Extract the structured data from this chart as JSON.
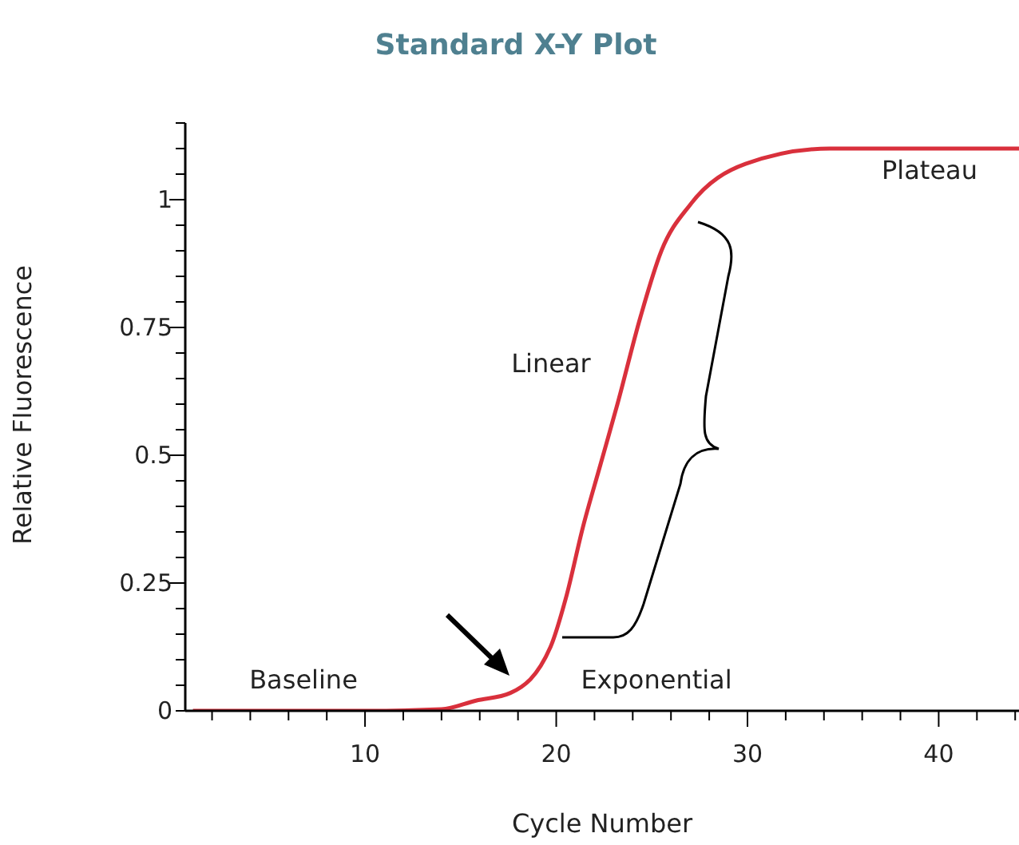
{
  "chart_data": {
    "type": "line",
    "title": "Standard X-Y Plot",
    "xlabel": "Cycle Number",
    "ylabel": "Relative Fluorescence",
    "x": [
      1,
      6,
      10,
      14,
      15.8,
      17.6,
      19.7,
      20.5,
      21.4,
      22.3,
      23.2,
      24.4,
      25.5,
      27.0,
      29.9,
      34.3,
      40,
      44.2
    ],
    "series": [
      {
        "color": "#d9303c",
        "values": [
          0,
          0,
          0,
          0.003,
          0.02,
          0.035,
          0.125,
          0.22,
          0.36,
          0.48,
          0.6,
          0.77,
          0.9,
          0.99,
          1.07,
          1.1,
          1.1,
          1.1
        ]
      }
    ],
    "xlim": [
      0.6,
      44.2
    ],
    "ylim": [
      0,
      1.15
    ],
    "xticks": [
      {
        "value": 2,
        "label": null
      },
      {
        "value": 4,
        "label": null
      },
      {
        "value": 6,
        "label": null
      },
      {
        "value": 8,
        "label": null
      },
      10,
      {
        "value": 12,
        "label": null
      },
      {
        "value": 14,
        "label": null
      },
      {
        "value": 16,
        "label": null
      },
      {
        "value": 18,
        "label": null
      },
      20,
      {
        "value": 22,
        "label": null
      },
      {
        "value": 24,
        "label": null
      },
      {
        "value": 26,
        "label": null
      },
      {
        "value": 28,
        "label": null
      },
      30,
      {
        "value": 32,
        "label": null
      },
      {
        "value": 34,
        "label": null
      },
      {
        "value": 36,
        "label": null
      },
      {
        "value": 38,
        "label": null
      },
      40,
      {
        "value": 42,
        "label": null
      },
      {
        "value": 44,
        "label": null
      }
    ],
    "yticks": [
      0,
      {
        "value": 0.05,
        "label": null
      },
      {
        "value": 0.1,
        "label": null
      },
      {
        "value": 0.15,
        "label": null
      },
      {
        "value": 0.2,
        "label": null
      },
      0.25,
      {
        "value": 0.3,
        "label": null
      },
      {
        "value": 0.35,
        "label": null
      },
      {
        "value": 0.4,
        "label": null
      },
      {
        "value": 0.45,
        "label": null
      },
      0.5,
      {
        "value": 0.55,
        "label": null
      },
      {
        "value": 0.6,
        "label": null
      },
      {
        "value": 0.65,
        "label": null
      },
      {
        "value": 0.7,
        "label": null
      },
      0.75,
      {
        "value": 0.8,
        "label": null
      },
      {
        "value": 0.85,
        "label": null
      },
      {
        "value": 0.9,
        "label": null
      },
      {
        "value": 0.95,
        "label": null
      },
      1,
      {
        "value": 1.05,
        "label": null
      },
      {
        "value": 1.1,
        "label": null
      },
      {
        "value": 1.15,
        "label": null
      }
    ],
    "annotations": [
      "Baseline",
      "Exponential",
      "Linear",
      "Plateau"
    ],
    "grid": false,
    "legend": false,
    "marker": "none",
    "line_style": "solid"
  }
}
